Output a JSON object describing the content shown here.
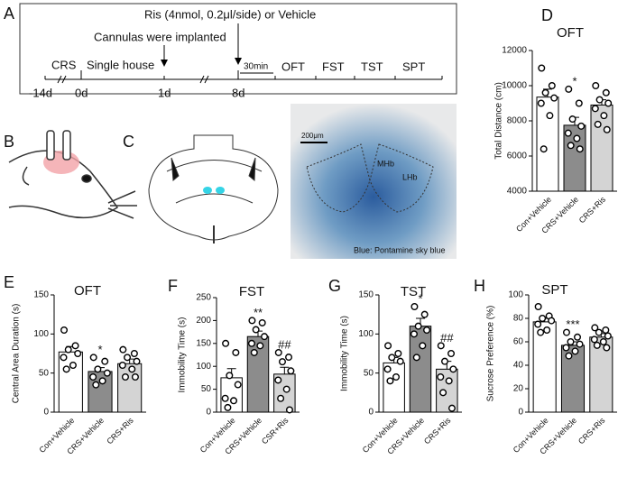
{
  "timeline": {
    "panel": "A",
    "treatment": "Ris (4nmol, 0.2μl/side) or Vehicle",
    "surgery": "Cannulas were implanted",
    "interval": "30min",
    "phases": [
      "CRS",
      "Single house",
      "OFT",
      "FST",
      "TST",
      "SPT"
    ],
    "days": [
      "-14d",
      "0d",
      "1d",
      "8d"
    ]
  },
  "surgery_panel": {
    "panel": "B"
  },
  "histology_panel": {
    "panel": "C",
    "scale_bar": "200μm",
    "regions": [
      "MHb",
      "LHb"
    ],
    "caption": "Blue: Pontamine sky blue"
  },
  "chart_data": [
    {
      "type": "bar",
      "panel": "D",
      "title": "OFT",
      "y_label": "Total Distance (cm)",
      "categories": [
        "Con+Vehicle",
        "CRS+Vehicle",
        "CRS+Ris"
      ],
      "colors": [
        "#ffffff",
        "#8c8c8c",
        "#d4d4d4"
      ],
      "values": [
        9350,
        7750,
        8900
      ],
      "errors": [
        450,
        450,
        300
      ],
      "points": [
        [
          11000,
          10000,
          9600,
          9300,
          9000,
          8300,
          6400
        ],
        [
          9800,
          9000,
          8100,
          7700,
          7300,
          7000,
          6600,
          6400
        ],
        [
          10000,
          9600,
          9200,
          9000,
          8700,
          8300,
          7800,
          7500
        ]
      ],
      "significance": [
        null,
        "*",
        null
      ],
      "ylim": [
        4000,
        12000
      ],
      "yticks": [
        4000,
        6000,
        8000,
        10000,
        12000
      ]
    },
    {
      "type": "bar",
      "panel": "E",
      "title": "OFT",
      "y_label": "Central Area Duration (s)",
      "categories": [
        "Con+Vehicle",
        "CRS+Vehicle",
        "CRS+Ris"
      ],
      "colors": [
        "#ffffff",
        "#8c8c8c",
        "#d4d4d4"
      ],
      "values": [
        77,
        52,
        62
      ],
      "errors": [
        7,
        5,
        6
      ],
      "points": [
        [
          105,
          85,
          80,
          75,
          70,
          60,
          55
        ],
        [
          70,
          65,
          55,
          50,
          45,
          40,
          35
        ],
        [
          80,
          75,
          70,
          65,
          60,
          55,
          45,
          45
        ]
      ],
      "significance": [
        null,
        "*",
        null
      ],
      "ylim": [
        0,
        150
      ],
      "yticks": [
        0,
        50,
        100,
        150
      ]
    },
    {
      "type": "bar",
      "panel": "F",
      "title": "FST",
      "y_label": "Immobility Time (s)",
      "categories": [
        "Con+Vehicle",
        "CRS+Vehicle",
        "CSR+Ris"
      ],
      "colors": [
        "#ffffff",
        "#8c8c8c",
        "#d4d4d4"
      ],
      "values": [
        75,
        165,
        83
      ],
      "errors": [
        20,
        12,
        15
      ],
      "points": [
        [
          150,
          130,
          80,
          60,
          30,
          25,
          10
        ],
        [
          200,
          195,
          180,
          165,
          150,
          145,
          130
        ],
        [
          130,
          120,
          110,
          90,
          70,
          50,
          30,
          5
        ]
      ],
      "significance": [
        null,
        "**",
        "##"
      ],
      "ylim": [
        0,
        250
      ],
      "yticks": [
        0,
        50,
        100,
        150,
        200,
        250
      ]
    },
    {
      "type": "bar",
      "panel": "G",
      "title": "TST",
      "y_label": "Immobility Time (s)",
      "categories": [
        "Con+Vehicle",
        "CRS+Vehicle",
        "CRS+Ris"
      ],
      "colors": [
        "#ffffff",
        "#8c8c8c",
        "#d4d4d4"
      ],
      "values": [
        63,
        110,
        55
      ],
      "errors": [
        7,
        10,
        10
      ],
      "points": [
        [
          85,
          75,
          70,
          65,
          55,
          45,
          40
        ],
        [
          135,
          125,
          110,
          105,
          100,
          85,
          70
        ],
        [
          85,
          75,
          65,
          55,
          45,
          40,
          25,
          5
        ]
      ],
      "significance": [
        null,
        "*",
        "##"
      ],
      "ylim": [
        0,
        150
      ],
      "yticks": [
        0,
        50,
        100,
        150
      ]
    },
    {
      "type": "bar",
      "panel": "H",
      "title": "SPT",
      "y_label": "Sucrose Preference (%)",
      "categories": [
        "Con+Vehicle",
        "CRS+Vehicle",
        "CRS+Ris"
      ],
      "colors": [
        "#ffffff",
        "#8c8c8c",
        "#d4d4d4"
      ],
      "values": [
        77,
        57,
        64
      ],
      "errors": [
        3,
        3,
        3
      ],
      "points": [
        [
          90,
          82,
          80,
          78,
          75,
          70,
          68
        ],
        [
          68,
          64,
          60,
          58,
          55,
          52,
          48
        ],
        [
          72,
          70,
          68,
          65,
          62,
          60,
          57,
          55
        ]
      ],
      "significance": [
        null,
        "***",
        null
      ],
      "ylim": [
        0,
        100
      ],
      "yticks": [
        0,
        20,
        40,
        60,
        80,
        100
      ]
    }
  ]
}
